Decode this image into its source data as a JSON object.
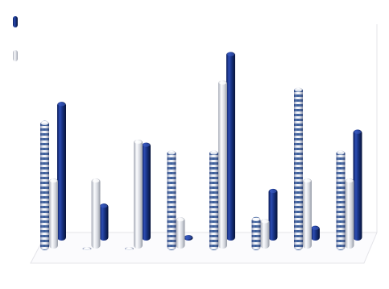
{
  "chart_data": {
    "type": "bar",
    "categories": [
      "",
      "",
      "",
      "",
      "",
      "",
      "",
      ""
    ],
    "series": [
      {
        "name": "",
        "role": "front-striped",
        "values": [
          70,
          1,
          1,
          54,
          54,
          18,
          88,
          54
        ]
      },
      {
        "name": "",
        "role": "middle-silver",
        "values": [
          38,
          38,
          59,
          17,
          91,
          16,
          38,
          38
        ]
      },
      {
        "name": "",
        "role": "back-navy",
        "values": [
          75,
          20,
          53,
          3,
          102,
          28,
          8,
          60
        ]
      }
    ],
    "ylim": [
      0,
      110
    ],
    "grid": false,
    "legend_position": "top-left",
    "colors": {
      "navy": "#142a78",
      "silver": "#cfd1d7",
      "stripe_light": "#f5f7fb",
      "stripe_dark": "#365a99",
      "axis": "#e4e4e9",
      "text": "#b8b8c3"
    }
  }
}
